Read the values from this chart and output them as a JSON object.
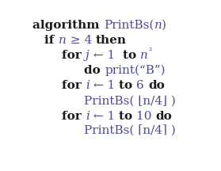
{
  "bg_color": "#ffffff",
  "figsize": [
    2.79,
    2.16
  ],
  "dpi": 100,
  "fontsize": 11,
  "black": "#1a1a1a",
  "blue": "#4a4a9a",
  "lines": [
    {
      "indent": 0.03,
      "segments": [
        {
          "t": "algorithm ",
          "bold": true,
          "italic": false,
          "color": "black"
        },
        {
          "t": "PrintBs(",
          "bold": false,
          "italic": false,
          "color": "blue"
        },
        {
          "t": "n",
          "bold": false,
          "italic": true,
          "color": "blue"
        },
        {
          "t": ")",
          "bold": false,
          "italic": false,
          "color": "blue"
        }
      ]
    },
    {
      "indent": 0.1,
      "segments": [
        {
          "t": "if ",
          "bold": true,
          "italic": false,
          "color": "black"
        },
        {
          "t": "n",
          "bold": false,
          "italic": true,
          "color": "blue"
        },
        {
          "t": " ≥ 4 ",
          "bold": false,
          "italic": false,
          "color": "blue"
        },
        {
          "t": "then",
          "bold": true,
          "italic": false,
          "color": "black"
        }
      ]
    },
    {
      "indent": 0.2,
      "segments": [
        {
          "t": "for ",
          "bold": true,
          "italic": false,
          "color": "black"
        },
        {
          "t": "j",
          "bold": false,
          "italic": true,
          "color": "blue"
        },
        {
          "t": " ← 1  to ",
          "bold": false,
          "italic": false,
          "color": "blue"
        },
        {
          "t": "to ",
          "bold": true,
          "italic": false,
          "color": "black"
        },
        {
          "t": "n",
          "bold": false,
          "italic": true,
          "color": "blue"
        },
        {
          "t": "²",
          "bold": false,
          "italic": false,
          "color": "blue",
          "super": true
        }
      ]
    },
    {
      "indent": 0.33,
      "segments": [
        {
          "t": "do ",
          "bold": true,
          "italic": false,
          "color": "black"
        },
        {
          "t": "print(“B”)",
          "bold": false,
          "italic": false,
          "color": "blue"
        }
      ]
    },
    {
      "indent": 0.2,
      "segments": [
        {
          "t": "for ",
          "bold": true,
          "italic": false,
          "color": "black"
        },
        {
          "t": "i",
          "bold": false,
          "italic": true,
          "color": "blue"
        },
        {
          "t": " ← 1 ",
          "bold": false,
          "italic": false,
          "color": "blue"
        },
        {
          "t": "to ",
          "bold": true,
          "italic": false,
          "color": "black"
        },
        {
          "t": "6 ",
          "bold": false,
          "italic": false,
          "color": "blue"
        },
        {
          "t": "do",
          "bold": true,
          "italic": false,
          "color": "black"
        }
      ]
    },
    {
      "indent": 0.33,
      "segments": [
        {
          "t": "PrintBs( ⌊n/4⌋ )",
          "bold": false,
          "italic": false,
          "color": "blue"
        }
      ]
    },
    {
      "indent": 0.2,
      "segments": [
        {
          "t": "for ",
          "bold": true,
          "italic": false,
          "color": "black"
        },
        {
          "t": "i",
          "bold": false,
          "italic": true,
          "color": "blue"
        },
        {
          "t": " ← 1 ",
          "bold": false,
          "italic": false,
          "color": "blue"
        },
        {
          "t": "to ",
          "bold": true,
          "italic": false,
          "color": "black"
        },
        {
          "t": "10 ",
          "bold": false,
          "italic": false,
          "color": "blue"
        },
        {
          "t": "do",
          "bold": true,
          "italic": false,
          "color": "black"
        }
      ]
    },
    {
      "indent": 0.33,
      "segments": [
        {
          "t": "PrintBs( ⌈n/4⌉ )",
          "bold": false,
          "italic": false,
          "color": "blue"
        }
      ]
    }
  ]
}
